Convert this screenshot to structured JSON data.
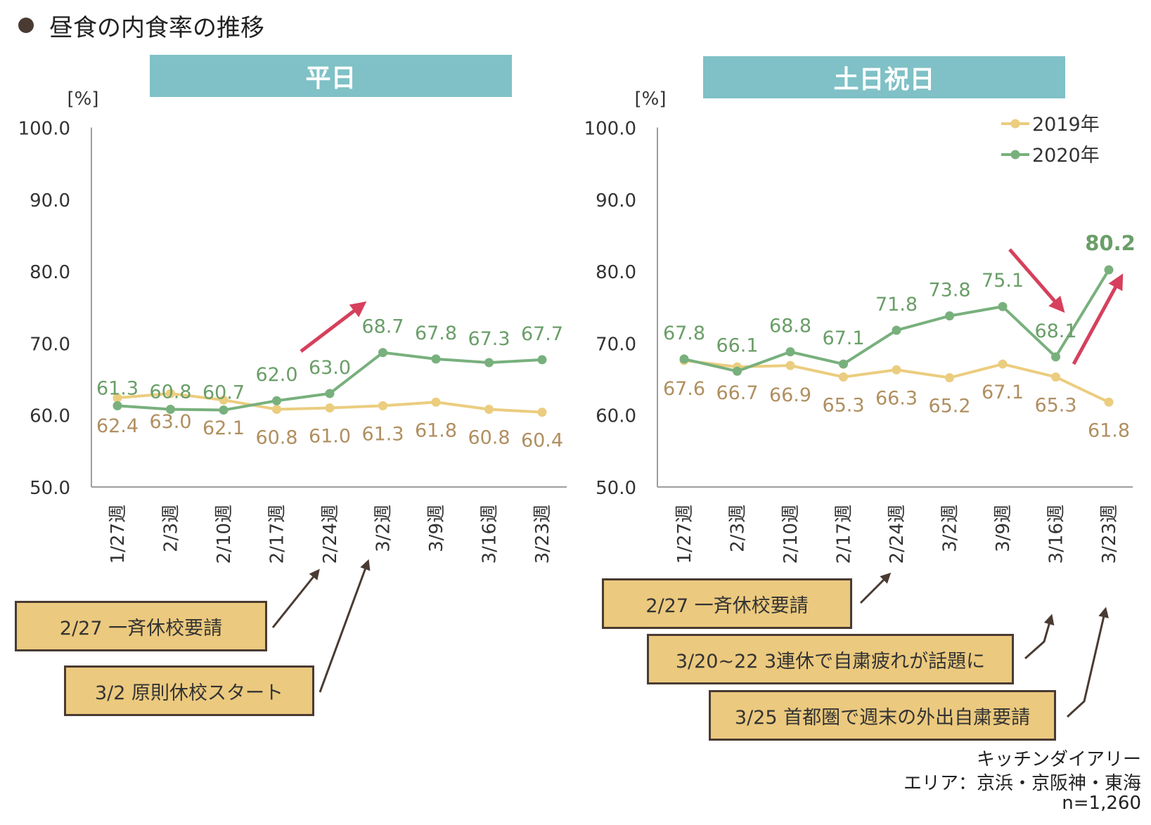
{
  "title": "昼食の内食率の推移",
  "colors": {
    "y2019": "#ebcd7f",
    "y2020": "#78b07d",
    "label2019": "#b08f60",
    "label2020": "#6a9e68",
    "arrow": "#d6405c",
    "axis": "#9e9e9e",
    "header": "#7fc1c6",
    "note_bg": "#ebc97e"
  },
  "legend": {
    "s2019": "2019年",
    "s2020": "2020年"
  },
  "source": {
    "line1": "キッチンダイアリー",
    "line2": "エリア：京浜・京阪神・東海",
    "line3": "n=1,260"
  },
  "chart_data": [
    {
      "type": "line",
      "title": "平日",
      "ylabel": "[%]",
      "ylim": [
        50,
        100
      ],
      "yticks": [
        "50.0",
        "60.0",
        "70.0",
        "80.0",
        "90.0",
        "100.0"
      ],
      "categories": [
        "1/27週",
        "2/3週",
        "2/10週",
        "2/17週",
        "2/24週",
        "3/2週",
        "3/9週",
        "3/16週",
        "3/23週"
      ],
      "series": [
        {
          "name": "2019年",
          "values": [
            62.4,
            63.0,
            62.1,
            60.8,
            61.0,
            61.3,
            61.8,
            60.8,
            60.4
          ]
        },
        {
          "name": "2020年",
          "values": [
            61.3,
            60.8,
            60.7,
            62.0,
            63.0,
            68.7,
            67.8,
            67.3,
            67.7
          ]
        }
      ],
      "notes": [
        "2/27 一斉休校要請",
        "3/2 原則休校スタート"
      ]
    },
    {
      "type": "line",
      "title": "土日祝日",
      "ylabel": "[%]",
      "ylim": [
        50,
        100
      ],
      "yticks": [
        "50.0",
        "60.0",
        "70.0",
        "80.0",
        "90.0",
        "100.0"
      ],
      "categories": [
        "1/27週",
        "2/3週",
        "2/10週",
        "2/17週",
        "2/24週",
        "3/2週",
        "3/9週",
        "3/16週",
        "3/23週"
      ],
      "legend_position": "top-right",
      "series": [
        {
          "name": "2019年",
          "values": [
            67.6,
            66.7,
            66.9,
            65.3,
            66.3,
            65.2,
            67.1,
            65.3,
            61.8
          ]
        },
        {
          "name": "2020年",
          "values": [
            67.8,
            66.1,
            68.8,
            67.1,
            71.8,
            73.8,
            75.1,
            68.1,
            80.2
          ]
        }
      ],
      "notes": [
        "2/27 一斉休校要請",
        "3/20~22 3連休で自粛疲れが話題に",
        "3/25 首都圏で週末の外出自粛要請"
      ]
    }
  ]
}
